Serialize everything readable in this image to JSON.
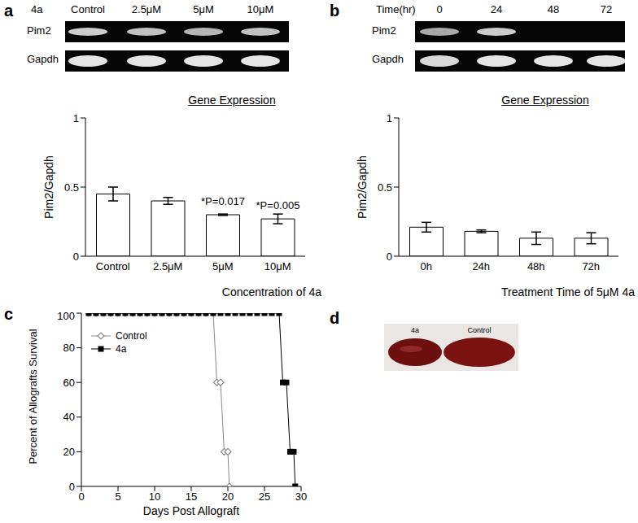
{
  "panel_labels": [
    "a",
    "b",
    "c",
    "d"
  ],
  "gels": [
    {
      "header": "4a",
      "lanes": [
        "Control",
        "2.5μM",
        "5μM",
        "10μM"
      ],
      "rows": [
        "Pim2",
        "Gapdh"
      ]
    },
    {
      "header": "Time(hr)",
      "lanes": [
        "0",
        "24",
        "48",
        "72"
      ],
      "rows": [
        "Pim2",
        "Gapdh"
      ]
    }
  ],
  "photo": {
    "labels": [
      "4a",
      "Control"
    ]
  },
  "chart_data": [
    {
      "type": "bar",
      "title": "Gene Expression",
      "categories": [
        "Control",
        "2.5μM",
        "5μM",
        "10μM"
      ],
      "values": [
        0.45,
        0.4,
        0.3,
        0.27
      ],
      "errors": [
        0.05,
        0.025,
        0.005,
        0.035
      ],
      "annotations": [
        null,
        null,
        "*P=0.017",
        "*P=0.005"
      ],
      "x_label": "Concentration of 4a",
      "y_label": "Pim2/Gapdh",
      "ylim": [
        0,
        1
      ],
      "yticks": [
        0,
        0.5,
        1
      ],
      "color": "#ffffff"
    },
    {
      "type": "bar",
      "title": "Gene Expression",
      "categories": [
        "0h",
        "24h",
        "48h",
        "72h"
      ],
      "values": [
        0.21,
        0.18,
        0.13,
        0.13
      ],
      "errors": [
        0.035,
        0.01,
        0.045,
        0.04
      ],
      "x_label": "Treatment Time of 5μM 4a",
      "y_label": "Pim2/Gapdh",
      "ylim": [
        0,
        1
      ],
      "yticks": [
        0,
        0.5,
        1
      ],
      "color": "#ffffff"
    },
    {
      "type": "line",
      "x_label": "Days Post Allograft",
      "y_label": "Percent of Allografts Survival",
      "xlim": [
        0,
        30
      ],
      "xticks": [
        0,
        5,
        10,
        15,
        20,
        25,
        30
      ],
      "ylim": [
        0,
        100
      ],
      "yticks": [
        0,
        20,
        40,
        60,
        80,
        100
      ],
      "legend": "upper left",
      "series": [
        {
          "name": "Control",
          "color": "#888888",
          "marker": "diamond",
          "x": [
            1,
            2,
            3,
            4,
            5,
            6,
            7,
            8,
            9,
            10,
            11,
            12,
            13,
            14,
            15,
            16,
            17,
            18,
            18.5,
            19,
            19.5,
            20,
            20.2
          ],
          "values": [
            100,
            100,
            100,
            100,
            100,
            100,
            100,
            100,
            100,
            100,
            100,
            100,
            100,
            100,
            100,
            100,
            100,
            100,
            60,
            60,
            20,
            20,
            0
          ]
        },
        {
          "name": "4a",
          "color": "#000000",
          "marker": "square",
          "x": [
            1,
            2,
            3,
            4,
            5,
            6,
            7,
            8,
            9,
            10,
            11,
            12,
            13,
            14,
            15,
            16,
            17,
            18,
            19,
            20,
            21,
            22,
            23,
            24,
            25,
            26,
            27,
            27.5,
            28,
            28.5,
            29,
            29.2
          ],
          "values": [
            100,
            100,
            100,
            100,
            100,
            100,
            100,
            100,
            100,
            100,
            100,
            100,
            100,
            100,
            100,
            100,
            100,
            100,
            100,
            100,
            100,
            100,
            100,
            100,
            100,
            100,
            100,
            60,
            60,
            20,
            20,
            0
          ]
        }
      ]
    }
  ]
}
